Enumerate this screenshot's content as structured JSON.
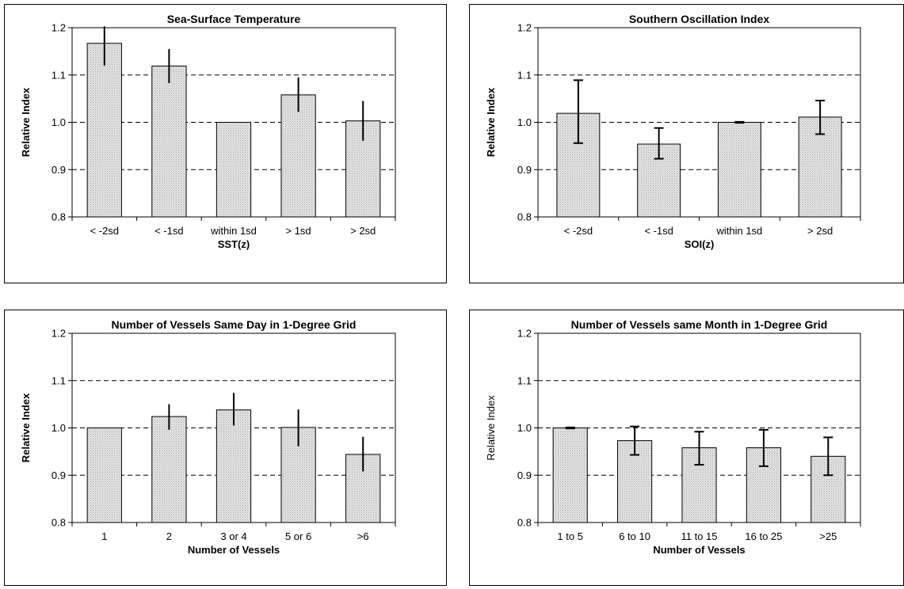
{
  "chart_data": [
    {
      "type": "bar",
      "title": "Sea-Surface Temperature",
      "xlabel": "SST(z)",
      "ylabel": "Relative Index",
      "xlabel_bold": true,
      "ylabel_bold": true,
      "categories": [
        "< -2sd",
        "< -1sd",
        "within 1sd",
        "> 1sd",
        "> 2sd"
      ],
      "values": [
        1.167,
        1.119,
        1.0,
        1.058,
        1.003
      ],
      "error_low": [
        1.12,
        1.083,
        1.0,
        1.022,
        0.961
      ],
      "error_high": [
        1.203,
        1.155,
        1.0,
        1.095,
        1.045
      ],
      "ylim": [
        0.8,
        1.2
      ],
      "yticks": [
        "0.8",
        "0.9",
        "1.0",
        "1.1",
        "1.2"
      ],
      "gridlines": "dashed",
      "error_caps": false
    },
    {
      "type": "bar",
      "title": "Southern Oscillation Index",
      "xlabel": "SOI(z)",
      "ylabel": "Relative Index",
      "xlabel_bold": true,
      "ylabel_bold": true,
      "categories": [
        "< -2sd",
        "< -1sd",
        "within 1sd",
        "> 2sd"
      ],
      "values": [
        1.019,
        0.954,
        1.0,
        1.011
      ],
      "error_low": [
        0.956,
        0.923,
        0.999,
        0.975
      ],
      "error_high": [
        1.089,
        0.988,
        1.001,
        1.046
      ],
      "ylim": [
        0.8,
        1.2
      ],
      "yticks": [
        "0.8",
        "0.9",
        "1.0",
        "1.1",
        "1.2"
      ],
      "gridlines": "dashed",
      "error_caps": true
    },
    {
      "type": "bar",
      "title": "Number of Vessels Same Day in 1-Degree Grid",
      "xlabel": "Number of Vessels",
      "ylabel": "Relative Index",
      "xlabel_bold": true,
      "ylabel_bold": true,
      "categories": [
        "1",
        "2",
        "3 or 4",
        "5 or 6",
        ">6"
      ],
      "values": [
        1.0,
        1.024,
        1.038,
        1.001,
        0.944
      ],
      "error_low": [
        1.0,
        0.996,
        1.005,
        0.961,
        0.908
      ],
      "error_high": [
        1.0,
        1.05,
        1.074,
        1.039,
        0.981
      ],
      "ylim": [
        0.8,
        1.2
      ],
      "yticks": [
        "0.8",
        "0.9",
        "1.0",
        "1.1",
        "1.2"
      ],
      "gridlines": "dashed",
      "error_caps": false
    },
    {
      "type": "bar",
      "title": "Number of Vessels same Month in 1-Degree Grid",
      "xlabel": "Number of Vessels",
      "ylabel": "Relative Index",
      "xlabel_bold": true,
      "ylabel_bold": false,
      "categories": [
        "1 to 5",
        "6 to 10",
        "11 to 15",
        "16 to 25",
        ">25"
      ],
      "values": [
        1.0,
        0.973,
        0.958,
        0.958,
        0.94
      ],
      "error_low": [
        0.999,
        0.943,
        0.922,
        0.919,
        0.9
      ],
      "error_high": [
        1.001,
        1.003,
        0.992,
        0.996,
        0.98
      ],
      "ylim": [
        0.8,
        1.2
      ],
      "yticks": [
        "0.8",
        "0.9",
        "1.0",
        "1.1",
        "1.2"
      ],
      "gridlines": "dashed",
      "error_caps": true
    }
  ]
}
